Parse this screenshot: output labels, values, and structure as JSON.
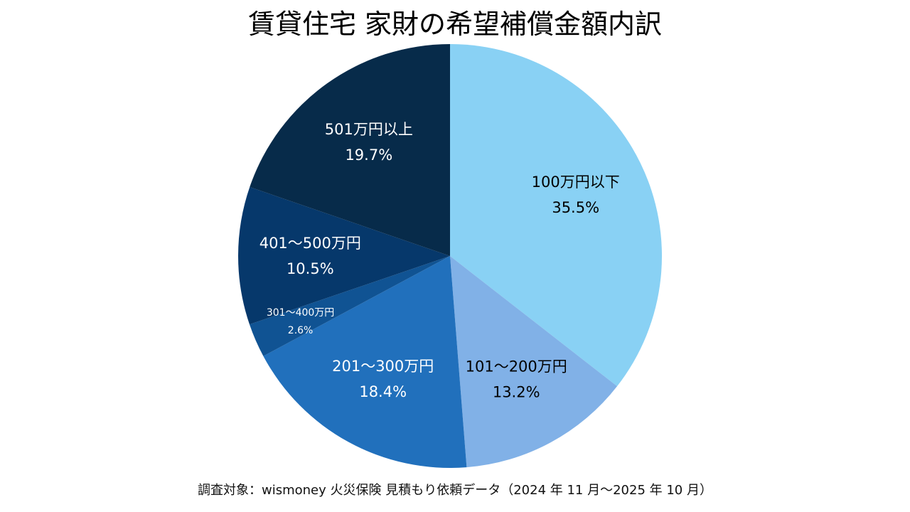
{
  "chart_data": {
    "type": "pie",
    "title": "賃貸住宅 家財の希望補償金額内訳",
    "categories": [
      "100万円以下",
      "101〜200万円",
      "201〜300万円",
      "301〜400万円",
      "401〜500万円",
      "501万円以上"
    ],
    "values": [
      35.5,
      13.2,
      18.4,
      2.6,
      10.5,
      19.7
    ],
    "value_labels": [
      "35.5%",
      "13.2%",
      "18.4%",
      "2.6%",
      "10.5%",
      "19.7%"
    ],
    "unit": "%",
    "start_angle": "12 o'clock",
    "direction": "clockwise",
    "legend": "none",
    "colors": [
      "#89d1f4",
      "#81b1e7",
      "#2170bc",
      "#105393",
      "#06386b",
      "#072b4a"
    ],
    "label_colors": [
      "#000000",
      "#000000",
      "#ffffff",
      "#ffffff",
      "#ffffff",
      "#ffffff"
    ]
  },
  "footnote": "調査対象：wismoney 火災保険 見積もり依頼データ（2024 年 11 月〜2025 年 10 月）"
}
